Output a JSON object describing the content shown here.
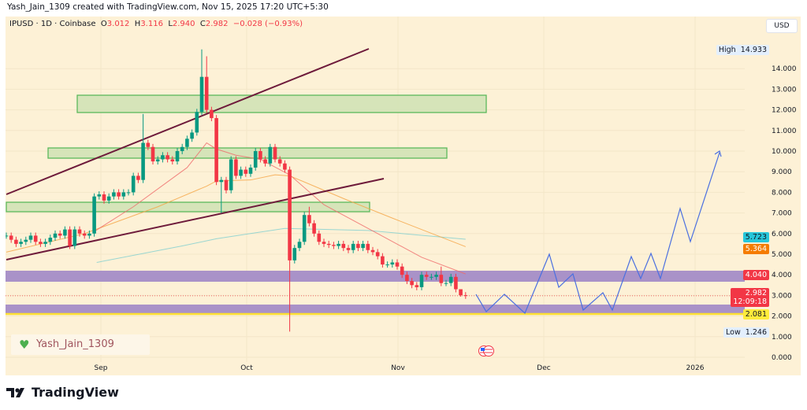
{
  "header": {
    "credit": "Yash_Jain_1309 created with TradingView.com, Nov 15, 2025 17:20 UTC+5:30",
    "symbol": "IPUSD · 1D · Coinbase",
    "o_label": "O",
    "o": "3.012",
    "h_label": "H",
    "h": "3.116",
    "l_label": "L",
    "l": "2.940",
    "c_label": "C",
    "c": "2.982",
    "change": "−0.028 (−0.93%)",
    "currency": "USD"
  },
  "watermark": {
    "text": "Yash_Jain_1309",
    "icon": "green-heart-icon"
  },
  "brand": "TradingView",
  "colors": {
    "up": "#089981",
    "down": "#f23645",
    "background": "#fdf1d6",
    "zone_green": "#cfe2b4",
    "zone_purple": "#a992c8",
    "projection": "#4a6fe0",
    "trendline": "#6e1b3b"
  },
  "chart_data": {
    "type": "candlestick",
    "x_ticks": [
      "Sep",
      "Oct",
      "Nov",
      "Dec",
      "2026"
    ],
    "y_ticks": [
      "14.000",
      "13.000",
      "12.000",
      "11.000",
      "10.000",
      "9.000",
      "8.000",
      "7.000",
      "6.000",
      "5.000",
      "4.000",
      "3.000",
      "2.000",
      "1.000",
      "0.000"
    ],
    "ylim": [
      0,
      15.5
    ],
    "close": [
      5.9,
      5.7,
      5.5,
      5.6,
      5.7,
      5.9,
      5.6,
      5.5,
      5.6,
      5.8,
      6.0,
      5.9,
      6.2,
      5.4,
      6.2,
      6.0,
      5.9,
      6.0,
      7.8,
      7.9,
      7.6,
      7.8,
      8.0,
      7.8,
      8.0,
      8.0,
      8.8,
      8.6,
      10.4,
      10.2,
      9.5,
      9.6,
      9.8,
      9.6,
      9.5,
      10.0,
      10.2,
      10.6,
      10.9,
      11.9,
      13.6,
      12.0,
      11.6,
      8.5,
      8.6,
      8.1,
      9.6,
      8.8,
      9.1,
      8.9,
      9.2,
      10.0,
      9.6,
      9.4,
      10.2,
      9.6,
      9.4,
      9.1,
      4.7,
      5.3,
      5.6,
      6.9,
      6.5,
      6.0,
      5.6,
      5.5,
      5.45,
      5.4,
      5.5,
      5.3,
      5.2,
      5.5,
      5.3,
      5.5,
      5.2,
      5.1,
      4.9,
      4.5,
      4.5,
      4.6,
      4.4,
      4.0,
      3.7,
      3.5,
      3.4,
      4.0,
      3.9,
      3.9,
      4.0,
      3.6,
      3.6,
      3.9,
      3.3,
      3.012,
      2.982
    ],
    "wick_overrides": {
      "28": {
        "h": 11.8
      },
      "40": {
        "h": 14.933
      },
      "41": {
        "h": 14.6
      },
      "44": {
        "l": 7.0
      },
      "58": {
        "l": 1.246
      },
      "62": {
        "h": 7.3
      },
      "89": {
        "h": 4.4
      },
      "93": {
        "h": 3.116,
        "l": 2.94
      }
    },
    "ma_red": [
      [
        18,
        6.1
      ],
      [
        26,
        7.3
      ],
      [
        37,
        9.2
      ],
      [
        41,
        10.4
      ],
      [
        43,
        10.1
      ],
      [
        47,
        9.8
      ],
      [
        52,
        9.6
      ],
      [
        58,
        8.85
      ],
      [
        65,
        7.4
      ],
      [
        76,
        6.0
      ],
      [
        85,
        4.85
      ],
      [
        94,
        4.04
      ]
    ],
    "ma_orange": [
      [
        0,
        5.1
      ],
      [
        16,
        6.0
      ],
      [
        31,
        7.3
      ],
      [
        41,
        8.3
      ],
      [
        43,
        8.55
      ],
      [
        50,
        8.6
      ],
      [
        55,
        8.85
      ],
      [
        58,
        8.8
      ],
      [
        69,
        7.7
      ],
      [
        79,
        6.75
      ],
      [
        94,
        5.364
      ]
    ],
    "ma_teal": [
      [
        18.5,
        4.6
      ],
      [
        36,
        5.4
      ],
      [
        43,
        5.75
      ],
      [
        50,
        6.0
      ],
      [
        57,
        6.25
      ],
      [
        74,
        6.15
      ],
      [
        94,
        5.723
      ]
    ],
    "price_labels": {
      "high_label": "High",
      "high": "14.933",
      "low_label": "Low",
      "low": "1.246",
      "ma_teal": "5.723",
      "ma_orange": "5.364",
      "zone_level": "4.040",
      "last": "2.982",
      "countdown": "12:09:18",
      "support": "2.081"
    }
  }
}
